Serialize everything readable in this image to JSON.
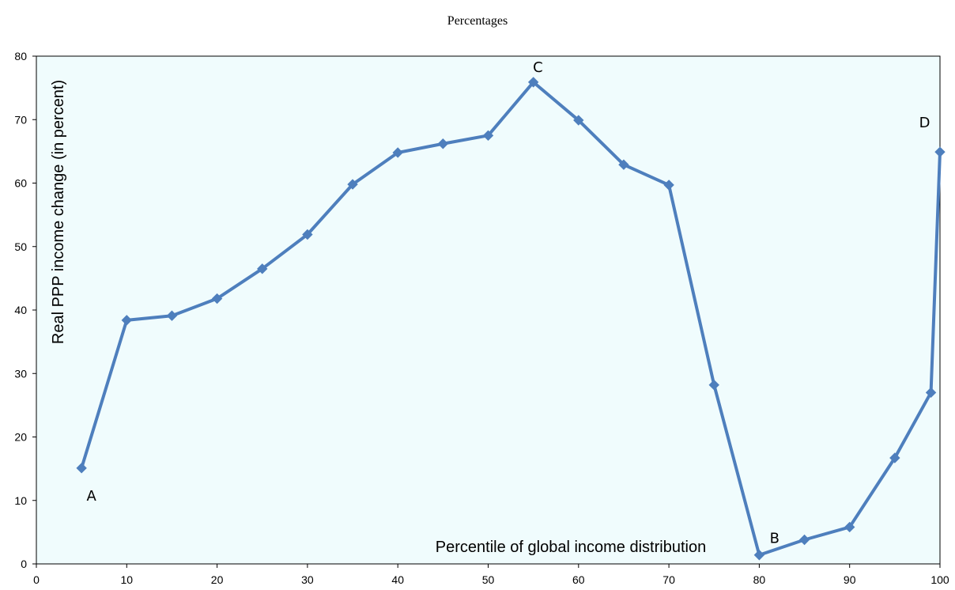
{
  "chart_data": {
    "type": "line",
    "subtitle": "Percentages",
    "xlabel": "Percentile of  global income distribution",
    "ylabel": "Real PPP income change (in percent)",
    "xlim": [
      0,
      100
    ],
    "ylim": [
      0,
      80
    ],
    "xticks": [
      "0",
      "10",
      "20",
      "30",
      "40",
      "50",
      "60",
      "70",
      "80",
      "90",
      "100"
    ],
    "yticks": [
      "0",
      "10",
      "20",
      "30",
      "40",
      "50",
      "60",
      "70",
      "80"
    ],
    "grid": false,
    "colors": {
      "plot_background": "#f0fcfd",
      "series_line": "#4e7fbd",
      "axis": "#000000"
    },
    "series": [
      {
        "x": [
          5,
          10,
          15,
          20,
          25,
          30,
          35,
          40,
          45,
          50,
          55,
          60,
          65,
          70,
          75,
          80,
          85,
          90,
          95,
          99,
          100
        ],
        "values": [
          15.1,
          38.4,
          39.1,
          41.8,
          46.5,
          51.9,
          59.8,
          64.8,
          66.2,
          67.5,
          75.9,
          69.9,
          62.9,
          59.7,
          28.2,
          1.4,
          3.8,
          5.8,
          16.7,
          27.0,
          64.9
        ]
      }
    ],
    "annotations": [
      {
        "text": "A",
        "x": 6.1,
        "y": 10
      },
      {
        "text": "C",
        "x": 55.5,
        "y": 77.5
      },
      {
        "text": "D",
        "x": 98.3,
        "y": 68.8
      },
      {
        "text": "B",
        "x": 81.7,
        "y": 3.3
      }
    ]
  }
}
